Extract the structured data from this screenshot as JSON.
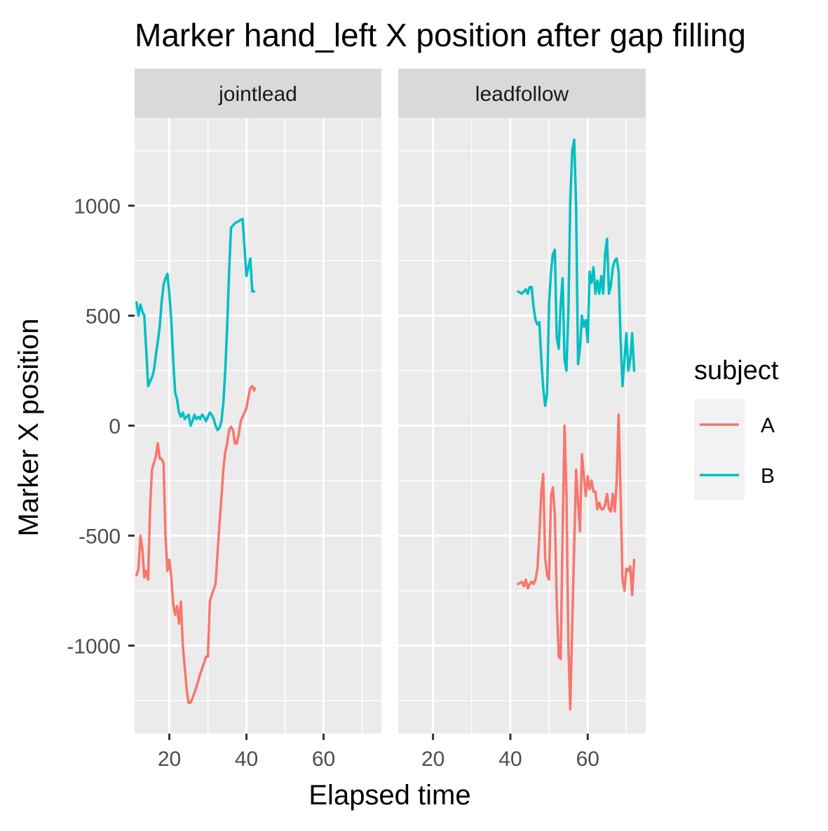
{
  "chart_data": {
    "type": "line",
    "title": "Marker hand_left X position after gap filling",
    "xlabel": "Elapsed time",
    "ylabel": "Marker X position",
    "xlim": [
      11,
      75
    ],
    "ylim": [
      -1400,
      1400
    ],
    "x_ticks": [
      20,
      40,
      60
    ],
    "y_ticks": [
      -1000,
      -500,
      0,
      500,
      1000
    ],
    "y_tick_labels": [
      "-1000",
      "-500",
      "0",
      "500",
      "1000"
    ],
    "grid": true,
    "legend": {
      "title": "subject",
      "position": "right"
    },
    "series_names": [
      "A",
      "B"
    ],
    "colors": {
      "A": "#F8766D",
      "B": "#00BFC4",
      "panel_bg": "#EBEBEB",
      "strip_bg": "#D9D9D9",
      "grid": "#FFFFFF"
    },
    "facets": [
      {
        "label": "jointlead",
        "series": [
          {
            "name": "A",
            "x": [
              11.5,
              12.0,
              12.5,
              13.0,
              13.5,
              14.0,
              14.5,
              15.0,
              15.5,
              16.0,
              16.5,
              17.0,
              17.5,
              18.0,
              18.5,
              19.0,
              19.5,
              20.0,
              20.5,
              21.0,
              21.5,
              22.0,
              22.5,
              23.0,
              23.5,
              24.0,
              24.5,
              25.0,
              25.5,
              26.0,
              27.0,
              28.0,
              29.0,
              29.5,
              30.0,
              30.5,
              31.0,
              32.0,
              32.5,
              33.0,
              33.5,
              34.0,
              34.5,
              35.0,
              35.5,
              36.0,
              36.5,
              37.0,
              37.5,
              38.0,
              38.5,
              39.0,
              39.5,
              40.0,
              40.5,
              41.0,
              41.5,
              42.0,
              42.2
            ],
            "y": [
              -680,
              -650,
              -500,
              -560,
              -690,
              -660,
              -700,
              -380,
              -200,
              -170,
              -140,
              -80,
              -150,
              -150,
              -170,
              -500,
              -660,
              -610,
              -690,
              -810,
              -860,
              -820,
              -900,
              -800,
              -1000,
              -1100,
              -1200,
              -1260,
              -1260,
              -1240,
              -1190,
              -1130,
              -1080,
              -1050,
              -1050,
              -800,
              -770,
              -720,
              -580,
              -450,
              -330,
              -200,
              -120,
              -80,
              -20,
              -5,
              -20,
              -80,
              -80,
              -40,
              20,
              40,
              60,
              80,
              130,
              170,
              180,
              160,
              170
            ]
          },
          {
            "name": "B",
            "x": [
              11.5,
              12.0,
              12.5,
              13.0,
              13.5,
              14.0,
              14.5,
              15.0,
              15.5,
              16.0,
              16.5,
              17.0,
              17.5,
              18.0,
              18.5,
              19.0,
              19.5,
              20.0,
              20.5,
              21.0,
              21.5,
              22.0,
              22.5,
              23.0,
              23.5,
              24.0,
              24.5,
              25.0,
              25.5,
              26.0,
              26.5,
              27.0,
              27.5,
              28.0,
              28.5,
              29.0,
              29.5,
              30.0,
              30.5,
              31.0,
              31.5,
              32.0,
              32.5,
              33.0,
              33.5,
              34.0,
              34.5,
              35.0,
              35.5,
              36.0,
              37.0,
              38.0,
              39.0,
              40.0,
              40.5,
              41.0,
              41.5,
              42.0
            ],
            "y": [
              560,
              500,
              550,
              520,
              500,
              350,
              180,
              200,
              220,
              250,
              320,
              380,
              450,
              560,
              640,
              670,
              690,
              600,
              480,
              300,
              150,
              120,
              60,
              40,
              60,
              30,
              40,
              50,
              0,
              20,
              50,
              30,
              40,
              30,
              50,
              40,
              20,
              40,
              60,
              50,
              30,
              0,
              -20,
              -10,
              20,
              100,
              250,
              450,
              700,
              900,
              920,
              930,
              940,
              680,
              720,
              760,
              610,
              610
            ]
          }
        ]
      },
      {
        "label": "leadfollow",
        "series": [
          {
            "name": "A",
            "x": [
              42.0,
              43.0,
              43.5,
              44.0,
              44.5,
              45.0,
              45.5,
              46.0,
              46.5,
              47.0,
              47.5,
              48.0,
              48.5,
              49.0,
              49.5,
              50.0,
              50.5,
              51.0,
              51.5,
              52.0,
              52.5,
              53.0,
              53.5,
              54.0,
              54.5,
              55.0,
              55.5,
              56.0,
              56.5,
              57.0,
              57.5,
              58.0,
              58.5,
              59.0,
              59.5,
              60.0,
              60.5,
              61.0,
              61.5,
              62.0,
              62.5,
              63.0,
              63.5,
              64.0,
              64.5,
              65.0,
              65.5,
              66.0,
              66.5,
              67.0,
              67.5,
              68.0,
              68.5,
              69.0,
              69.5,
              70.0,
              70.5,
              71.0,
              71.5,
              72.0
            ],
            "y": [
              -720,
              -710,
              -730,
              -700,
              -740,
              -720,
              -710,
              -720,
              -700,
              -650,
              -500,
              -300,
              -220,
              -600,
              -680,
              -700,
              -320,
              -280,
              -400,
              -800,
              -1050,
              -1060,
              -500,
              0,
              -300,
              -1000,
              -1290,
              -900,
              -550,
              -200,
              -350,
              -480,
              -130,
              -230,
              -320,
              -230,
              -290,
              -250,
              -300,
              -300,
              -380,
              -350,
              -380,
              -380,
              -360,
              -310,
              -380,
              -390,
              -310,
              -390,
              -250,
              50,
              -300,
              -700,
              -750,
              -650,
              -660,
              -640,
              -770,
              -610
            ]
          },
          {
            "name": "B",
            "x": [
              42.0,
              43.0,
              43.5,
              44.0,
              44.5,
              45.0,
              45.5,
              46.0,
              46.5,
              47.0,
              47.5,
              48.0,
              48.5,
              49.0,
              49.5,
              50.0,
              50.5,
              51.0,
              51.5,
              52.0,
              52.5,
              53.0,
              53.5,
              54.0,
              54.5,
              55.0,
              55.5,
              56.0,
              56.5,
              57.0,
              57.5,
              58.0,
              58.5,
              59.0,
              59.5,
              60.0,
              60.5,
              61.0,
              61.5,
              62.0,
              62.5,
              63.0,
              63.5,
              64.0,
              64.5,
              65.0,
              65.5,
              66.0,
              66.5,
              67.0,
              67.5,
              68.0,
              68.5,
              69.0,
              69.5,
              70.0,
              70.5,
              71.0,
              71.5,
              72.0
            ],
            "y": [
              610,
              600,
              610,
              620,
              600,
              630,
              630,
              540,
              480,
              460,
              470,
              300,
              170,
              90,
              150,
              550,
              700,
              780,
              800,
              400,
              350,
              550,
              670,
              300,
              250,
              520,
              1020,
              1250,
              1300,
              1000,
              280,
              350,
              500,
              450,
              480,
              380,
              700,
              650,
              720,
              600,
              660,
              600,
              680,
              600,
              780,
              850,
              600,
              640,
              720,
              750,
              760,
              700,
              400,
              180,
              300,
              420,
              250,
              300,
              420,
              250
            ]
          }
        ]
      }
    ]
  }
}
